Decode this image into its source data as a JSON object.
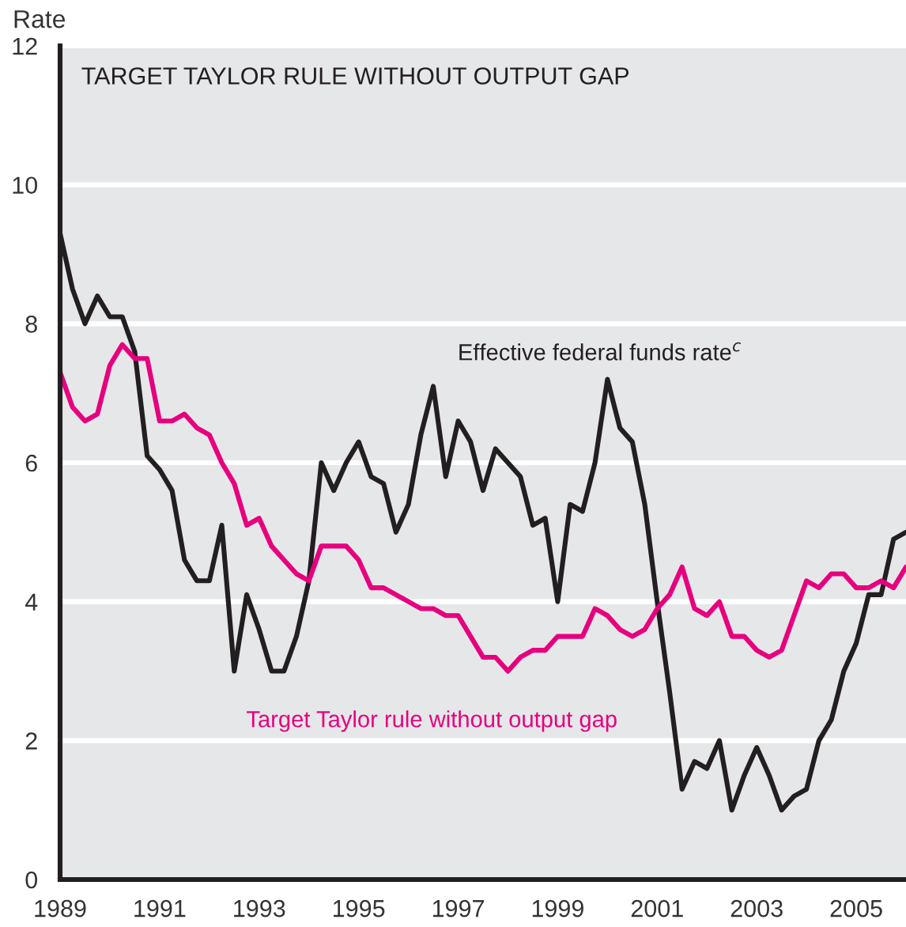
{
  "chart_data": {
    "type": "line",
    "title": "TARGET TAYLOR RULE WITHOUT OUTPUT GAP",
    "ylabel": "Rate",
    "x": [
      1989,
      1989.25,
      1989.5,
      1989.75,
      1990,
      1990.25,
      1990.5,
      1990.75,
      1991,
      1991.25,
      1991.5,
      1991.75,
      1992,
      1992.25,
      1992.5,
      1992.75,
      1993,
      1993.25,
      1993.5,
      1993.75,
      1994,
      1994.25,
      1994.5,
      1994.75,
      1995,
      1995.25,
      1995.5,
      1995.75,
      1996,
      1996.25,
      1996.5,
      1996.75,
      1997,
      1997.25,
      1997.5,
      1997.75,
      1998,
      1998.25,
      1998.5,
      1998.75,
      1999,
      1999.25,
      1999.5,
      1999.75,
      2000,
      2000.25,
      2000.5,
      2000.75,
      2001,
      2001.25,
      2001.5,
      2001.75,
      2002,
      2002.25,
      2002.5,
      2002.75,
      2003,
      2003.25,
      2003.5,
      2003.75,
      2004,
      2004.25,
      2004.5,
      2004.75,
      2005,
      2005.25,
      2005.5,
      2005.75,
      2006
    ],
    "series": [
      {
        "name": "Effective federal funds rate$^{c}$",
        "color": "#231f20",
        "values": [
          9.3,
          8.5,
          8.0,
          8.4,
          8.1,
          8.1,
          7.6,
          6.1,
          5.9,
          5.6,
          4.6,
          4.3,
          4.3,
          5.1,
          3.0,
          4.1,
          3.6,
          3.0,
          3.0,
          3.5,
          4.3,
          6.0,
          5.6,
          6.0,
          6.3,
          5.8,
          5.7,
          5.0,
          5.4,
          6.4,
          7.1,
          5.8,
          6.6,
          6.3,
          5.6,
          6.2,
          6.0,
          5.8,
          5.1,
          5.2,
          4.0,
          5.4,
          5.3,
          6.0,
          7.2,
          6.5,
          6.3,
          5.4,
          4.0,
          2.7,
          1.3,
          1.7,
          1.6,
          2.0,
          1.0,
          1.5,
          1.9,
          1.5,
          1.0,
          1.2,
          1.3,
          2.0,
          2.3,
          3.0,
          3.4,
          4.1,
          4.1,
          4.9,
          5.0
        ]
      },
      {
        "name": "Target Taylor rule without output gap",
        "color": "#e6007e",
        "values": [
          7.3,
          6.8,
          6.6,
          6.7,
          7.4,
          7.7,
          7.5,
          7.5,
          6.6,
          6.6,
          6.7,
          6.5,
          6.4,
          6.0,
          5.7,
          5.1,
          5.2,
          4.8,
          4.6,
          4.4,
          4.3,
          4.8,
          4.8,
          4.8,
          4.6,
          4.2,
          4.2,
          4.1,
          4.0,
          3.9,
          3.9,
          3.8,
          3.8,
          3.5,
          3.2,
          3.2,
          3.0,
          3.2,
          3.3,
          3.3,
          3.5,
          3.5,
          3.5,
          3.9,
          3.8,
          3.6,
          3.5,
          3.6,
          3.9,
          4.1,
          4.5,
          3.9,
          3.8,
          4.0,
          3.5,
          3.5,
          3.3,
          3.2,
          3.3,
          3.8,
          4.3,
          4.2,
          4.4,
          4.4,
          4.2,
          4.2,
          4.3,
          4.2,
          4.5
        ]
      }
    ],
    "xlim": [
      1989,
      2006
    ],
    "xticks": [
      1989,
      1991,
      1993,
      1995,
      1997,
      1999,
      2001,
      2003,
      2005
    ],
    "ylim": [
      0,
      12
    ],
    "yticks": [
      0,
      2,
      4,
      6,
      8,
      10,
      12
    ],
    "grid": "y",
    "legend": false
  }
}
